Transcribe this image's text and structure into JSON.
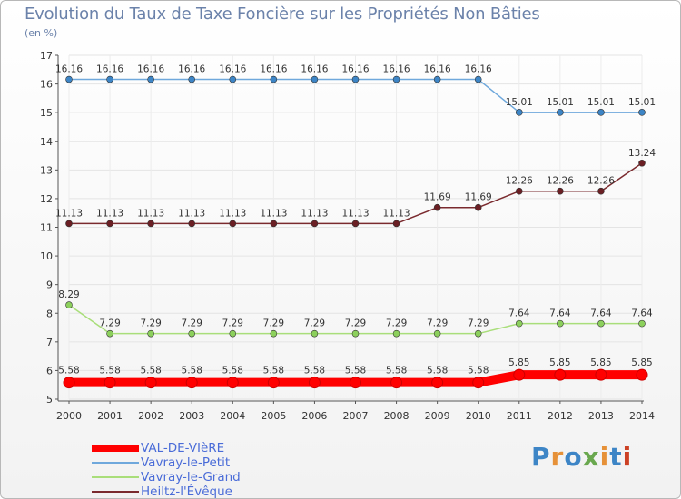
{
  "header": {
    "title": "Evolution du Taux de Taxe Foncière sur les Propriétés Non Bâties",
    "unit": "(en %)"
  },
  "brand": {
    "text": "Proxiti"
  },
  "chart_data": {
    "type": "line",
    "title": "Evolution du Taux de Taxe Foncière sur les Propriétés Non Bâties",
    "ylabel": "(en %)",
    "xlabel": "",
    "x": [
      "2000",
      "2001",
      "2002",
      "2003",
      "2004",
      "2005",
      "2006",
      "2007",
      "2008",
      "2009",
      "2010",
      "2011",
      "2012",
      "2013",
      "2014"
    ],
    "ylim": [
      5,
      17
    ],
    "yticks": [
      5,
      6,
      7,
      8,
      9,
      10,
      11,
      12,
      13,
      14,
      15,
      16,
      17
    ],
    "grid": true,
    "legend_position": "bottom-left",
    "series": [
      {
        "name": "VAL-DE-VIèRE",
        "color": "#ff0000",
        "marker_color": "#ff0000",
        "emphasis": true,
        "values": [
          5.58,
          5.58,
          5.58,
          5.58,
          5.58,
          5.58,
          5.58,
          5.58,
          5.58,
          5.58,
          5.58,
          5.85,
          5.85,
          5.85,
          5.85
        ],
        "labels": [
          "5.58",
          "5.58",
          "5.58",
          "5.58",
          "5.58",
          "5.58",
          "5.58",
          "5.58",
          "5.58",
          "5.58",
          "5.58",
          "5.85",
          "5.85",
          "5.85",
          "5.85"
        ]
      },
      {
        "name": "Vavray-le-Petit",
        "color": "#6fa8dc",
        "marker_color": "#3d85c6",
        "emphasis": false,
        "values": [
          16.16,
          16.16,
          16.16,
          16.16,
          16.16,
          16.16,
          16.16,
          16.16,
          16.16,
          16.16,
          16.16,
          15.01,
          15.01,
          15.01,
          15.01
        ],
        "labels": [
          "16.16",
          "16.16",
          "16.16",
          "16.16",
          "16.16",
          "16.16",
          "16.16",
          "16.16",
          "16.16",
          "16.16",
          "16.16",
          "15.01",
          "15.01",
          "15.01",
          "15.01"
        ]
      },
      {
        "name": "Vavray-le-Grand",
        "color": "#a9de7a",
        "marker_color": "#8cd05c",
        "emphasis": false,
        "values": [
          8.29,
          7.29,
          7.29,
          7.29,
          7.29,
          7.29,
          7.29,
          7.29,
          7.29,
          7.29,
          7.29,
          7.64,
          7.64,
          7.64,
          7.64
        ],
        "labels": [
          "8.29",
          "7.29",
          "7.29",
          "7.29",
          "7.29",
          "7.29",
          "7.29",
          "7.29",
          "7.29",
          "7.29",
          "7.29",
          "7.64",
          "7.64",
          "7.64",
          "7.64"
        ]
      },
      {
        "name": "Heiltz-l'Évêque",
        "color": "#7a2a2e",
        "marker_color": "#6b1f24",
        "emphasis": false,
        "values": [
          11.13,
          11.13,
          11.13,
          11.13,
          11.13,
          11.13,
          11.13,
          11.13,
          11.13,
          11.69,
          11.69,
          12.26,
          12.26,
          12.26,
          13.24
        ],
        "labels": [
          "11.13",
          "11.13",
          "11.13",
          "11.13",
          "11.13",
          "11.13",
          "11.13",
          "11.13",
          "11.13",
          "11.69",
          "11.69",
          "12.26",
          "12.26",
          "12.26",
          "13.24"
        ]
      }
    ]
  }
}
